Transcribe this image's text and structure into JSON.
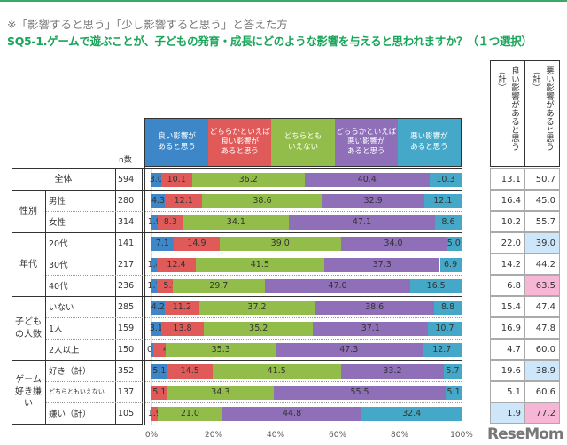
{
  "note": "※「影響すると思う」「少し影響すると思う」と答えた方",
  "title": "SQ5-1.ゲームで遊ぶことが、子どもの発育・成長にどのような影響を与えると思われますか？（１つ選択）",
  "n_label": "n数",
  "summary_headers": [
    "良い影響があると思う（計）",
    "悪い影響があると思う（計）"
  ],
  "watermark": "ReseMom",
  "chart_data": {
    "type": "bar",
    "orientation": "horizontal",
    "stacked": true,
    "xlim": [
      0,
      100
    ],
    "ticks": [
      "0%",
      "20%",
      "40%",
      "60%",
      "80%",
      "100%"
    ],
    "series": [
      {
        "name": "良い影響が\nあると思う",
        "color": "#3d87c9"
      },
      {
        "name": "どちらかといえば\n良い影響が\nあると思う",
        "color": "#e05a5a"
      },
      {
        "name": "どちらとも\nいえない",
        "color": "#93bd4a"
      },
      {
        "name": "どちらかといえば\n悪い影響が\nあると思う",
        "color": "#8e6fb8"
      },
      {
        "name": "悪い影響が\nあると思う",
        "color": "#46a8c8"
      }
    ],
    "groups": [
      {
        "label": "全体",
        "rows": [
          0
        ]
      },
      {
        "label": "性別",
        "rows": [
          1,
          2
        ]
      },
      {
        "label": "年代",
        "rows": [
          3,
          4,
          5
        ]
      },
      {
        "label": "子ども\nの人数",
        "rows": [
          6,
          7,
          8
        ]
      },
      {
        "label": "ゲーム\n好き嫌\nい",
        "rows": [
          9,
          10,
          11
        ]
      }
    ],
    "rows": [
      {
        "label": "",
        "n": "594",
        "values": [
          3.0,
          10.1,
          36.2,
          40.4,
          10.3
        ],
        "good_total": "13.1",
        "bad_total": "50.7"
      },
      {
        "label": "男性",
        "n": "280",
        "values": [
          4.3,
          12.1,
          38.6,
          32.9,
          12.1
        ],
        "good_total": "16.4",
        "bad_total": "45.0"
      },
      {
        "label": "女性",
        "n": "314",
        "values": [
          1.9,
          8.3,
          34.1,
          47.1,
          8.6
        ],
        "good_total": "10.2",
        "bad_total": "55.7"
      },
      {
        "label": "20代",
        "n": "141",
        "values": [
          7.1,
          14.9,
          39.0,
          34.0,
          5.0
        ],
        "good_total": "22.0",
        "bad_total": "39.0",
        "bad_highlight": "#cde6fa"
      },
      {
        "label": "30代",
        "n": "217",
        "values": [
          1.8,
          12.4,
          41.5,
          37.3,
          6.9
        ],
        "good_total": "14.2",
        "bad_total": "44.2"
      },
      {
        "label": "40代",
        "n": "236",
        "values": [
          1.7,
          5.1,
          29.7,
          47.0,
          16.5
        ],
        "good_total": "6.8",
        "bad_total": "63.5",
        "bad_highlight": "#f7b6d6"
      },
      {
        "label": "いない",
        "n": "285",
        "values": [
          4.2,
          11.2,
          37.2,
          38.6,
          8.8
        ],
        "good_total": "15.4",
        "bad_total": "47.4"
      },
      {
        "label": "1人",
        "n": "159",
        "values": [
          3.1,
          13.8,
          35.2,
          37.1,
          10.7
        ],
        "good_total": "16.9",
        "bad_total": "47.8"
      },
      {
        "label": "2人以上",
        "n": "150",
        "values": [
          0.7,
          4.0,
          35.3,
          47.3,
          12.7
        ],
        "good_total": "4.7",
        "bad_total": "60.0"
      },
      {
        "label": "好き（計）",
        "n": "352",
        "values": [
          5.1,
          14.5,
          41.5,
          33.2,
          5.7
        ],
        "good_total": "19.6",
        "bad_total": "38.9",
        "bad_highlight": "#cde6fa"
      },
      {
        "label": "どちらともいえない",
        "n": "137",
        "values": [
          0.0,
          5.1,
          34.3,
          55.5,
          5.1
        ],
        "good_total": "5.1",
        "bad_total": "60.6"
      },
      {
        "label": "嫌い（計）",
        "n": "105",
        "values": [
          0.0,
          1.9,
          21.0,
          44.8,
          32.4
        ],
        "good_total": "1.9",
        "bad_total": "77.2",
        "good_highlight": "#cde6fa",
        "bad_highlight": "#f7b6d6"
      }
    ]
  }
}
